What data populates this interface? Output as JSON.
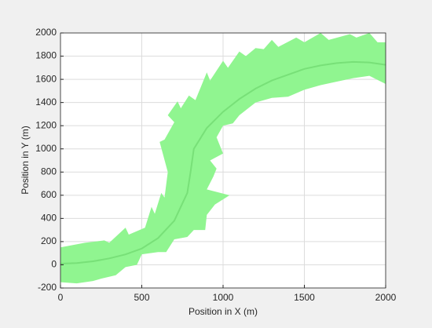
{
  "chart_data": {
    "type": "band-line",
    "xlabel": "Position in X (m)",
    "ylabel": "Position in Y (m)",
    "xlim": [
      0,
      2000
    ],
    "ylim": [
      -200,
      2000
    ],
    "xticks": [
      0,
      500,
      1000,
      1500,
      2000
    ],
    "yticks": [
      -200,
      0,
      200,
      400,
      600,
      800,
      1000,
      1200,
      1400,
      1600,
      1800,
      2000
    ],
    "grid": true,
    "band": {
      "color": "#90f590",
      "x": [
        0,
        150,
        270,
        300,
        400,
        420,
        520,
        560,
        580,
        620,
        640,
        660,
        610,
        640,
        700,
        660,
        720,
        740,
        790,
        830,
        900,
        920,
        1000,
        1030,
        1100,
        1140,
        1200,
        1250,
        1300,
        1340,
        1450,
        1500,
        1600,
        1650,
        1780,
        1820,
        1900,
        1950,
        2000,
        2000,
        1900,
        1800,
        1700,
        1600,
        1500,
        1400,
        1300,
        1200,
        1100,
        1060,
        1000,
        960,
        1000,
        920,
        960,
        940,
        900,
        1040,
        950,
        900,
        890,
        820,
        780,
        700,
        650,
        600,
        500,
        470,
        400,
        340,
        250,
        200,
        100,
        0
      ],
      "y": [
        150,
        190,
        210,
        190,
        320,
        260,
        320,
        500,
        440,
        620,
        580,
        800,
        1060,
        1080,
        1230,
        1290,
        1410,
        1350,
        1460,
        1420,
        1660,
        1590,
        1760,
        1700,
        1840,
        1800,
        1870,
        1860,
        1940,
        1880,
        1960,
        1920,
        2000,
        1940,
        1990,
        1960,
        2000,
        1920,
        1920,
        1560,
        1630,
        1610,
        1580,
        1550,
        1510,
        1450,
        1440,
        1400,
        1290,
        1220,
        1200,
        1100,
        960,
        900,
        830,
        760,
        650,
        600,
        520,
        430,
        300,
        300,
        240,
        220,
        110,
        110,
        90,
        0,
        -20,
        -90,
        -120,
        -140,
        -160,
        -150
      ]
    },
    "line": {
      "color": "#78e078",
      "x": [
        0,
        100,
        200,
        300,
        400,
        500,
        600,
        700,
        780,
        800,
        820,
        900,
        1000,
        1100,
        1200,
        1300,
        1400,
        1500,
        1600,
        1700,
        1800,
        1900,
        2000
      ],
      "y": [
        10,
        15,
        30,
        55,
        90,
        140,
        230,
        380,
        620,
        800,
        1000,
        1180,
        1320,
        1430,
        1520,
        1590,
        1640,
        1690,
        1720,
        1740,
        1750,
        1745,
        1725
      ]
    }
  }
}
